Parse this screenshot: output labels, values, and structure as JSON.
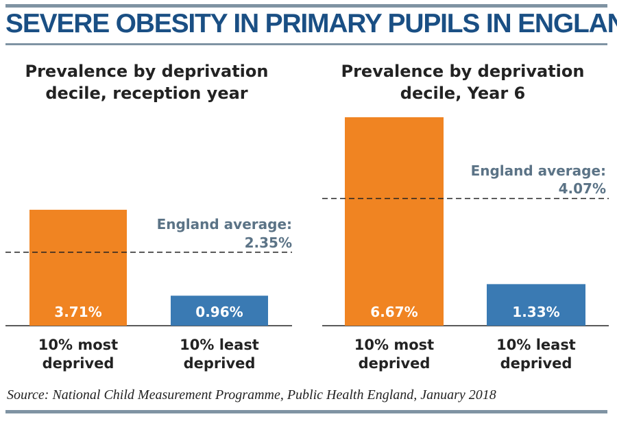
{
  "title": "SEVERE OBESITY IN PRIMARY PUPILS IN ENGLAND",
  "source": "Source: National Child Measurement Programme, Public Health England, January 2018",
  "colors": {
    "title": "#1a4f84",
    "most_deprived": "#f08422",
    "least_deprived": "#3a7ab3",
    "average_label": "#5b7386",
    "rule": "#7f93a3"
  },
  "chart_data": [
    {
      "type": "bar",
      "title": "Prevalence by deprivation decile, reception year",
      "categories": [
        "10% most deprived",
        "10% least deprived"
      ],
      "category_lines": [
        [
          "10% most",
          "deprived"
        ],
        [
          "10% least",
          "deprived"
        ]
      ],
      "values": [
        3.71,
        0.96
      ],
      "value_labels": [
        "3.71%",
        "0.96%"
      ],
      "reference_line": {
        "value": 2.35,
        "label_lines": [
          "England average:",
          "2.35%"
        ]
      },
      "ylim": [
        0,
        6.67
      ],
      "grid": false
    },
    {
      "type": "bar",
      "title": "Prevalence by deprivation decile, Year 6",
      "categories": [
        "10% most deprived",
        "10% least deprived"
      ],
      "category_lines": [
        [
          "10% most",
          "deprived"
        ],
        [
          "10% least",
          "deprived"
        ]
      ],
      "values": [
        6.67,
        1.33
      ],
      "value_labels": [
        "6.67%",
        "1.33%"
      ],
      "reference_line": {
        "value": 4.07,
        "label_lines": [
          "England average:",
          "4.07%"
        ]
      },
      "ylim": [
        0,
        6.67
      ],
      "grid": false
    }
  ]
}
